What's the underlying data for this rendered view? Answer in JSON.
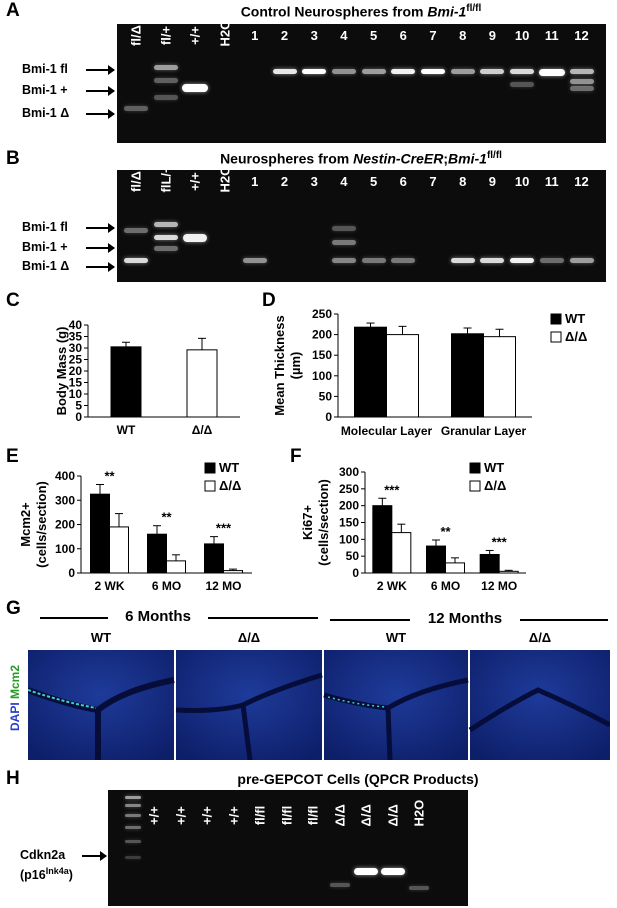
{
  "panelA": {
    "letter": "A",
    "title_prefix": "Control Neurospheres from ",
    "title_gene": "Bmi-1",
    "title_sup": "fl/fl",
    "lanes": [
      "fl/Δ",
      "fl/+",
      "+/+",
      "H2O",
      "1",
      "2",
      "3",
      "4",
      "5",
      "6",
      "7",
      "8",
      "9",
      "10",
      "11",
      "12"
    ],
    "bands": [
      "Bmi-1 fl",
      "Bmi-1 +",
      "Bmi-1 Δ"
    ]
  },
  "panelB": {
    "letter": "B",
    "title_prefix": "Neurospheres from ",
    "title_gene": "Nestin-CreER",
    "title_mid": ";",
    "title_gene2": "Bmi-1",
    "title_sup": "fl/fl",
    "lanes": [
      "fl/Δ",
      "flL/+",
      "+/+",
      "H2O",
      "1",
      "2",
      "3",
      "4",
      "5",
      "6",
      "7",
      "8",
      "9",
      "10",
      "11",
      "12"
    ],
    "bands": [
      "Bmi-1 fl",
      "Bmi-1 +",
      "Bmi-1 Δ"
    ]
  },
  "panelG": {
    "letter": "G",
    "group1": "6 Months",
    "group2": "12 Months",
    "col_labels": [
      "WT",
      "Δ/Δ",
      "WT",
      "Δ/Δ"
    ],
    "side_label_a": "DAPI",
    "side_label_b": "Mcm2"
  },
  "panelH": {
    "letter": "H",
    "title": "pre-GEPCOT Cells (QPCR Products)",
    "lanes": [
      "+/+",
      "+/+",
      "+/+",
      "+/+",
      "fl/fl",
      "fl/fl",
      "fl/fl",
      "Δ/Δ",
      "Δ/Δ",
      "Δ/Δ",
      "H2O"
    ],
    "band_label": "Cdkn2a",
    "band_label2_prefix": "(p16",
    "band_label2_sup": "Ink4a",
    "band_label2_suffix": ")"
  },
  "colors": {
    "gel_bg": "#0c0c0c",
    "band": "#ffffff",
    "wt_bar": "#000000",
    "ko_bar": "#ffffff",
    "dapi": "#1f3fb0",
    "mcm2": "#3bd1c0"
  },
  "chart_data": [
    {
      "id": "C",
      "type": "bar",
      "categories": [
        "WT",
        "Δ/Δ"
      ],
      "values": [
        30.5,
        29.2
      ],
      "errors": [
        2,
        5
      ],
      "ylabel": "Body Mass (g)",
      "ylim": [
        0,
        40
      ],
      "yticks": [
        0,
        5,
        10,
        15,
        20,
        25,
        30,
        35,
        40
      ],
      "colors": [
        "#000000",
        "#ffffff"
      ]
    },
    {
      "id": "D",
      "type": "bar",
      "categories": [
        "Molecular Layer",
        "Granular Layer"
      ],
      "series": [
        {
          "name": "WT",
          "values": [
            218,
            202
          ],
          "errors": [
            10,
            14
          ]
        },
        {
          "name": "Δ/Δ",
          "values": [
            200,
            195
          ],
          "errors": [
            20,
            18
          ]
        }
      ],
      "ylabel": "Mean Thickness (µm)",
      "ylim": [
        0,
        250
      ],
      "yticks": [
        0,
        50,
        100,
        150,
        200,
        250
      ],
      "legend": "top-right"
    },
    {
      "id": "E",
      "type": "bar",
      "categories": [
        "2 WK",
        "6 MO",
        "12 MO"
      ],
      "series": [
        {
          "name": "WT",
          "values": [
            325,
            160,
            120
          ],
          "errors": [
            40,
            35,
            30
          ]
        },
        {
          "name": "Δ/Δ",
          "values": [
            190,
            50,
            10
          ],
          "errors": [
            55,
            25,
            6
          ]
        }
      ],
      "annotations": [
        "**",
        "**",
        "***"
      ],
      "ylabel": "Mcm2+ (cells/section)",
      "ylim": [
        0,
        400
      ],
      "yticks": [
        0,
        100,
        200,
        300,
        400
      ],
      "legend": "top-right"
    },
    {
      "id": "F",
      "type": "bar",
      "categories": [
        "2 WK",
        "6 MO",
        "12 MO"
      ],
      "series": [
        {
          "name": "WT",
          "values": [
            200,
            80,
            55
          ],
          "errors": [
            22,
            18,
            12
          ]
        },
        {
          "name": "Δ/Δ",
          "values": [
            120,
            30,
            5
          ],
          "errors": [
            25,
            15,
            3
          ]
        }
      ],
      "annotations": [
        "***",
        "**",
        "***"
      ],
      "ylabel": "Ki67+ (cells/section)",
      "ylim": [
        0,
        300
      ],
      "yticks": [
        0,
        50,
        100,
        150,
        200,
        250,
        300
      ],
      "legend": "top-right"
    }
  ]
}
